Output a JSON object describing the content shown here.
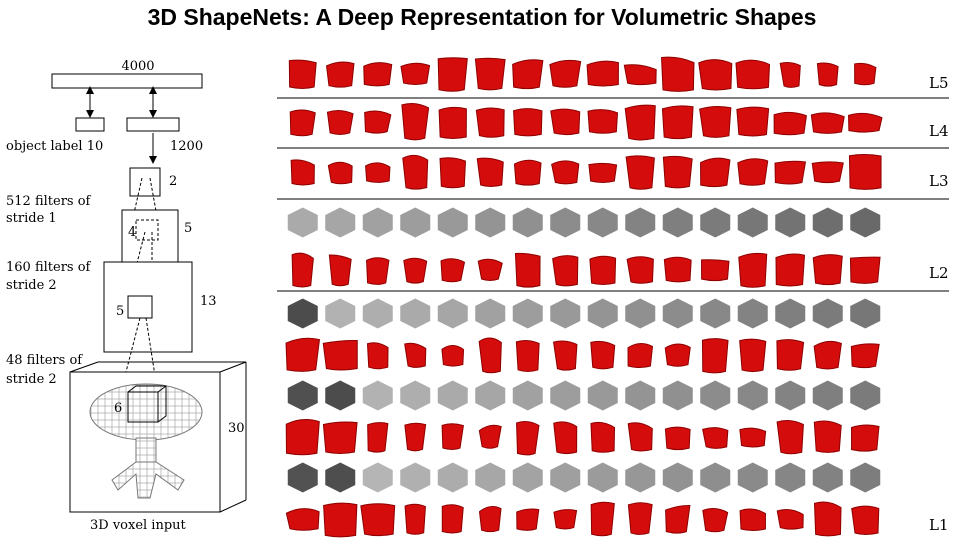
{
  "title": "3D ShapeNets: A Deep Representation for Volumetric Shapes",
  "network": {
    "top_units": "4000",
    "label_units": "object label 10",
    "hidden_units": "1200",
    "layer3": {
      "size": "2",
      "desc1": "512 filters of",
      "desc2": "stride 1"
    },
    "layer2": {
      "size": "5",
      "kernel": "4",
      "desc1": "160 filters of",
      "desc2": "stride 2"
    },
    "layer1": {
      "size": "13",
      "kernel": "5",
      "desc1": "48 filters of",
      "desc2": "stride 2"
    },
    "input": {
      "size": "30",
      "kernel": "6",
      "caption": "3D voxel input"
    }
  },
  "visualization": {
    "layers": [
      {
        "label": "L5",
        "rows": [
          {
            "kind": "shape",
            "count": 16
          }
        ]
      },
      {
        "label": "L4",
        "rows": [
          {
            "kind": "shape",
            "count": 16
          }
        ]
      },
      {
        "label": "L3",
        "rows": [
          {
            "kind": "shape",
            "count": 16
          }
        ]
      },
      {
        "label": "L2",
        "rows": [
          {
            "kind": "filter",
            "count": 16
          },
          {
            "kind": "shape",
            "count": 16
          }
        ]
      },
      {
        "label": "L1",
        "rows": [
          {
            "kind": "filter",
            "count": 16
          },
          {
            "kind": "shape",
            "count": 16
          },
          {
            "kind": "filter",
            "count": 16
          },
          {
            "kind": "shape",
            "count": 16
          },
          {
            "kind": "filter",
            "count": 16
          },
          {
            "kind": "shape",
            "count": 16
          }
        ]
      }
    ],
    "colors": {
      "shape": "#d40c0c",
      "shape_dark": "#8e0000",
      "filter": "#2a2a2a"
    }
  }
}
